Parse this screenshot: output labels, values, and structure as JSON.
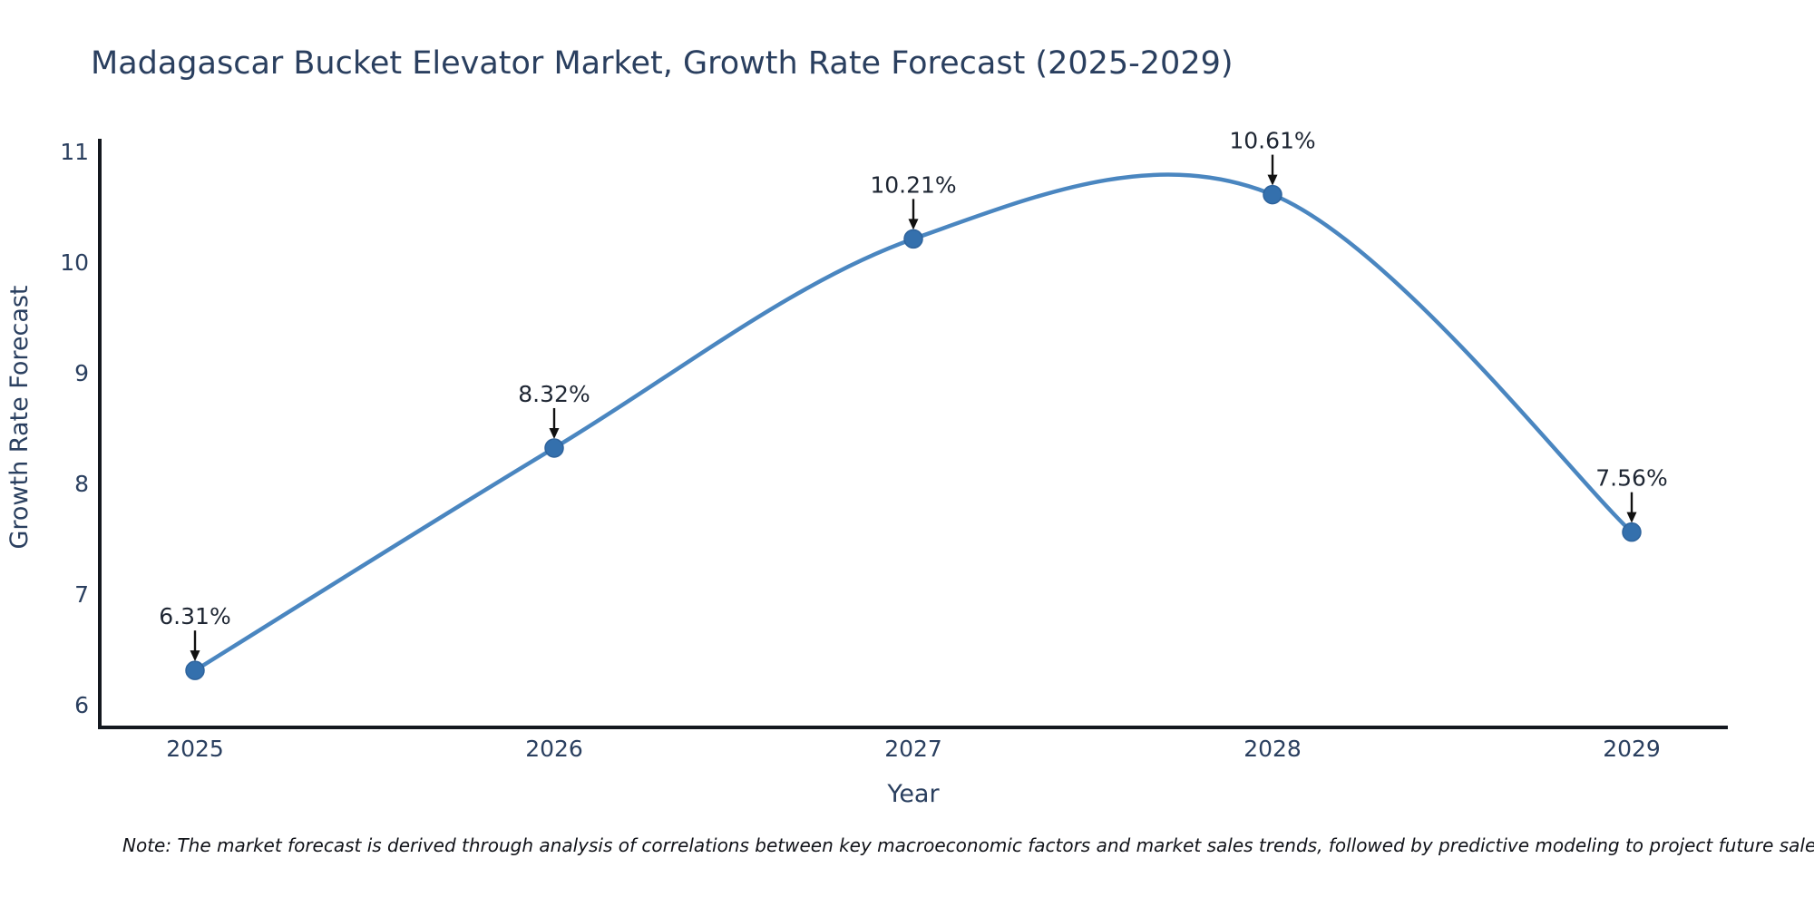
{
  "title": "Madagascar Bucket Elevator Market, Growth Rate Forecast (2025-2029)",
  "note": "Note: The market forecast is derived through analysis of correlations between key macroeconomic factors and market sales trends, followed by predictive modeling to project future sales.",
  "chart_data": {
    "type": "line",
    "line_shape": "spline",
    "title": "Madagascar Bucket Elevator Market, Growth Rate Forecast (2025-2029)",
    "x": [
      2025,
      2026,
      2027,
      2028,
      2029
    ],
    "y": [
      6.31,
      8.32,
      10.21,
      10.61,
      7.56
    ],
    "point_labels": [
      "6.31%",
      "8.32%",
      "10.21%",
      "10.61%",
      "7.56%"
    ],
    "xlabel": "Year",
    "ylabel": "Growth Rate Forecast",
    "xticks": [
      "2025",
      "2026",
      "2027",
      "2028",
      "2029"
    ],
    "yticks": [
      6,
      7,
      8,
      9,
      10,
      11
    ],
    "ylim": [
      5.8,
      11.1
    ],
    "grid": false,
    "legend": false,
    "colors": {
      "line": "#4a86c0",
      "marker_fill": "#3470ad",
      "marker_edge": "#2e639c",
      "axis_line": "#14181f",
      "tick_text": "#2a3f5f",
      "axis_title_text": "#2a3f5f",
      "annotation_text": "#1e2633",
      "arrow": "#111111",
      "title_text": "#2a3f5f",
      "background": "#ffffff"
    }
  }
}
